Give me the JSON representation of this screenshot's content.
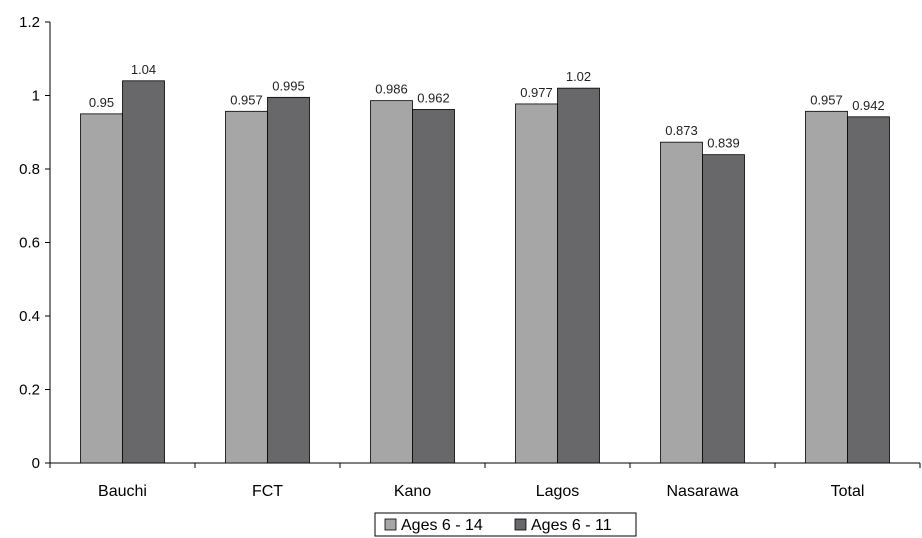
{
  "chart_data": {
    "type": "bar",
    "categories": [
      "Bauchi",
      "FCT",
      "Kano",
      "Lagos",
      "Nasarawa",
      "Total"
    ],
    "series": [
      {
        "name": "Ages 6 - 14",
        "values": [
          0.95,
          0.957,
          0.986,
          0.977,
          0.873,
          0.957
        ],
        "color": "#a6a6a6"
      },
      {
        "name": "Ages 6 - 11",
        "values": [
          1.04,
          0.995,
          0.962,
          1.02,
          0.839,
          0.942
        ],
        "color": "#68686b"
      }
    ],
    "value_labels": [
      [
        "0.95",
        "0.957",
        "0.986",
        "0.977",
        "0.873",
        "0.957"
      ],
      [
        "1.04",
        "0.995",
        "0.962",
        "1.02",
        "0.839",
        "0.942"
      ]
    ],
    "y_ticks": [
      "0",
      "0.2",
      "0.4",
      "0.6",
      "0.8",
      "1",
      "1.2"
    ],
    "ylim": [
      0,
      1.2
    ],
    "grid": false,
    "legend_position": "bottom-center"
  }
}
